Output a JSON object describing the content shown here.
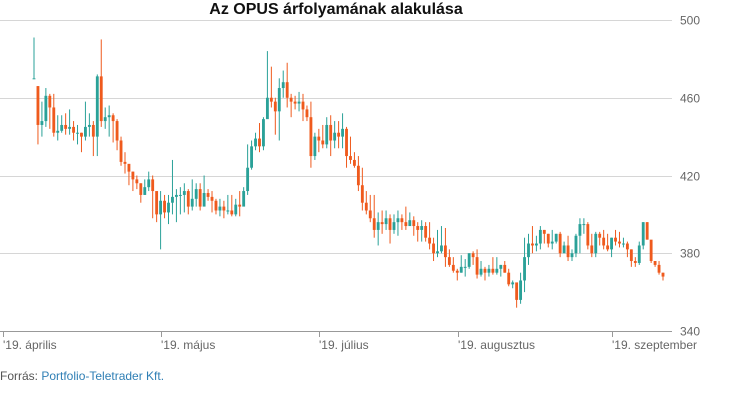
{
  "chart_data": {
    "type": "candlestick",
    "title": "Az OPUS árfolyamának alakulása",
    "xlabel": "",
    "ylabel": "",
    "ylim": [
      340,
      500
    ],
    "y_ticks": [
      500,
      460,
      420,
      380,
      340
    ],
    "y_axis_position": "right",
    "grid": true,
    "x_ticks": [
      "'19. április",
      "'19. május",
      "'19. július",
      "'19. augusztus",
      "'19. szeptember"
    ],
    "x_tick_index": [
      0,
      40,
      80,
      115,
      154
    ],
    "colors": {
      "up": "#2aa198",
      "down": "#ef5a1d",
      "grid": "#d6d6d6"
    },
    "candles": [
      [
        470,
        470,
        491,
        470
      ],
      [
        466,
        446,
        466,
        436
      ],
      [
        446,
        448,
        458,
        440
      ],
      [
        448,
        461,
        465,
        445
      ],
      [
        461,
        455,
        462,
        444
      ],
      [
        455,
        442,
        462,
        440
      ],
      [
        442,
        443,
        451,
        438
      ],
      [
        443,
        446,
        451,
        442
      ],
      [
        446,
        444,
        452,
        441
      ],
      [
        444,
        445,
        454,
        441
      ],
      [
        445,
        442,
        448,
        438
      ],
      [
        442,
        442,
        446,
        436
      ],
      [
        442,
        440,
        442,
        432
      ],
      [
        440,
        445,
        458,
        438
      ],
      [
        445,
        446,
        452,
        440
      ],
      [
        446,
        440,
        448,
        430
      ],
      [
        440,
        471,
        472,
        430
      ],
      [
        471,
        448,
        490,
        445
      ],
      [
        448,
        450,
        455,
        444
      ],
      [
        450,
        451,
        456,
        440
      ],
      [
        451,
        448,
        452,
        437
      ],
      [
        448,
        438,
        449,
        433
      ],
      [
        438,
        427,
        440,
        425
      ],
      [
        427,
        426,
        432,
        421
      ],
      [
        426,
        422,
        425,
        415
      ],
      [
        422,
        418,
        422,
        412
      ],
      [
        418,
        416,
        420,
        413
      ],
      [
        416,
        410,
        416,
        406
      ],
      [
        410,
        414,
        418,
        410
      ],
      [
        414,
        418,
        422,
        412
      ],
      [
        418,
        412,
        420,
        398
      ],
      [
        412,
        400,
        410,
        396
      ],
      [
        400,
        407,
        412,
        382
      ],
      [
        407,
        401,
        410,
        398
      ],
      [
        401,
        406,
        410,
        395
      ],
      [
        406,
        409,
        428,
        400
      ],
      [
        409,
        410,
        413,
        396
      ],
      [
        410,
        410,
        414,
        400
      ],
      [
        410,
        412,
        416,
        401
      ],
      [
        412,
        404,
        413,
        400
      ],
      [
        404,
        408,
        418,
        402
      ],
      [
        408,
        413,
        416,
        404
      ],
      [
        413,
        404,
        416,
        402
      ],
      [
        404,
        411,
        420,
        408
      ],
      [
        411,
        409,
        413,
        407
      ],
      [
        409,
        407,
        412,
        401
      ],
      [
        407,
        402,
        408,
        400
      ],
      [
        402,
        404,
        408,
        399
      ],
      [
        404,
        402,
        407,
        398
      ],
      [
        402,
        402,
        410,
        400
      ],
      [
        402,
        400,
        410,
        399
      ],
      [
        400,
        405,
        408,
        399
      ],
      [
        405,
        404,
        412,
        399
      ],
      [
        404,
        412,
        414,
        406
      ],
      [
        412,
        424,
        436,
        410
      ],
      [
        424,
        435,
        438,
        423
      ],
      [
        435,
        439,
        442,
        433
      ],
      [
        439,
        435,
        447,
        432
      ],
      [
        435,
        449,
        450,
        433
      ],
      [
        449,
        460,
        484,
        456
      ],
      [
        460,
        458,
        476,
        455
      ],
      [
        458,
        453,
        460,
        441
      ],
      [
        453,
        465,
        470,
        438
      ],
      [
        465,
        468,
        474,
        460
      ],
      [
        468,
        460,
        478,
        455
      ],
      [
        460,
        458,
        462,
        450
      ],
      [
        458,
        457,
        461,
        454
      ],
      [
        457,
        458,
        463,
        453
      ],
      [
        458,
        454,
        462,
        448
      ],
      [
        454,
        450,
        456,
        448
      ],
      [
        450,
        430,
        458,
        424
      ],
      [
        430,
        440,
        442,
        428
      ],
      [
        440,
        438,
        444,
        432
      ],
      [
        438,
        436,
        446,
        434
      ],
      [
        436,
        446,
        450,
        434
      ],
      [
        446,
        438,
        451,
        430
      ],
      [
        438,
        442,
        448,
        434
      ],
      [
        442,
        440,
        448,
        434
      ],
      [
        440,
        444,
        452,
        434
      ],
      [
        444,
        430,
        445,
        424
      ],
      [
        430,
        428,
        440,
        426
      ],
      [
        428,
        425,
        432,
        424
      ],
      [
        425,
        415,
        430,
        412
      ],
      [
        415,
        406,
        424,
        402
      ],
      [
        406,
        402,
        412,
        400
      ],
      [
        402,
        398,
        410,
        396
      ],
      [
        398,
        392,
        410,
        388
      ],
      [
        392,
        396,
        401,
        384
      ],
      [
        396,
        395,
        402,
        390
      ],
      [
        395,
        398,
        402,
        392
      ],
      [
        398,
        392,
        400,
        385
      ],
      [
        392,
        396,
        400,
        390
      ],
      [
        396,
        398,
        402,
        389
      ],
      [
        398,
        396,
        400,
        392
      ],
      [
        396,
        394,
        404,
        392
      ],
      [
        394,
        397,
        401,
        394
      ],
      [
        397,
        394,
        399,
        389
      ],
      [
        394,
        392,
        396,
        386
      ],
      [
        392,
        394,
        397,
        386
      ],
      [
        394,
        388,
        396,
        386
      ],
      [
        388,
        385,
        396,
        382
      ],
      [
        385,
        380,
        388,
        376
      ],
      [
        380,
        381,
        392,
        378
      ],
      [
        381,
        384,
        394,
        380
      ],
      [
        384,
        378,
        393,
        373
      ],
      [
        378,
        374,
        382,
        373
      ],
      [
        374,
        371,
        378,
        370
      ],
      [
        371,
        370,
        372,
        366
      ],
      [
        370,
        373,
        379,
        370
      ],
      [
        373,
        373,
        377,
        368
      ],
      [
        373,
        380,
        380,
        372
      ],
      [
        380,
        378,
        381,
        374
      ],
      [
        378,
        369,
        382,
        367
      ],
      [
        369,
        372,
        376,
        368
      ],
      [
        372,
        370,
        373,
        366
      ],
      [
        370,
        372,
        374,
        368
      ],
      [
        372,
        370,
        378,
        369
      ],
      [
        370,
        372,
        378,
        369
      ],
      [
        372,
        374,
        374,
        368
      ],
      [
        374,
        370,
        376,
        370
      ],
      [
        370,
        364,
        372,
        363
      ],
      [
        364,
        365,
        366,
        362
      ],
      [
        365,
        356,
        362,
        352
      ],
      [
        356,
        366,
        370,
        354
      ],
      [
        366,
        378,
        388,
        360
      ],
      [
        378,
        385,
        390,
        374
      ],
      [
        385,
        384,
        394,
        380
      ],
      [
        384,
        385,
        389,
        381
      ],
      [
        385,
        392,
        394,
        382
      ],
      [
        392,
        390,
        392,
        385
      ],
      [
        390,
        385,
        390,
        383
      ],
      [
        385,
        386,
        392,
        382
      ],
      [
        386,
        390,
        390,
        385
      ],
      [
        390,
        380,
        391,
        378
      ],
      [
        380,
        384,
        386,
        381
      ],
      [
        384,
        378,
        389,
        376
      ],
      [
        378,
        380,
        382,
        376
      ],
      [
        380,
        389,
        390,
        378
      ],
      [
        389,
        395,
        398,
        380
      ],
      [
        395,
        395,
        398,
        390
      ],
      [
        395,
        384,
        396,
        382
      ],
      [
        384,
        380,
        390,
        378
      ],
      [
        380,
        390,
        391,
        378
      ],
      [
        390,
        388,
        391,
        384
      ],
      [
        388,
        384,
        392,
        382
      ],
      [
        384,
        382,
        390,
        381
      ],
      [
        382,
        388,
        388,
        378
      ],
      [
        388,
        386,
        392,
        384
      ],
      [
        386,
        385,
        391,
        383
      ],
      [
        385,
        385,
        388,
        383
      ],
      [
        385,
        382,
        386,
        378
      ],
      [
        382,
        376,
        382,
        373
      ],
      [
        376,
        375,
        378,
        373
      ],
      [
        375,
        384,
        386,
        374
      ],
      [
        384,
        396,
        396,
        382
      ],
      [
        396,
        387,
        396,
        387
      ],
      [
        387,
        376,
        380,
        375
      ],
      [
        376,
        374,
        376,
        373
      ],
      [
        374,
        370,
        376,
        369
      ],
      [
        370,
        368,
        370,
        366
      ]
    ]
  },
  "source": {
    "prefix": "Forrás: ",
    "link_text": "Portfolio-Teletrader Kft."
  }
}
